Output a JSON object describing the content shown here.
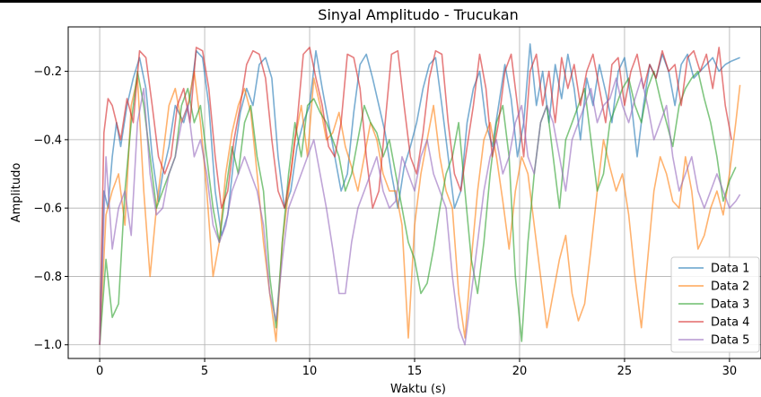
{
  "chart_data": {
    "type": "line",
    "title": "Sinyal Amplitudo - Trucukan",
    "xlabel": "Waktu (s)",
    "ylabel": "Amplitudo",
    "xlim": [
      -1.5,
      31.5
    ],
    "ylim": [
      -1.04,
      -0.07
    ],
    "xticks": [
      0,
      5,
      10,
      15,
      20,
      25,
      30
    ],
    "yticks": [
      -1.0,
      -0.8,
      -0.6,
      -0.4,
      -0.2
    ],
    "xtick_labels": [
      "0",
      "5",
      "10",
      "15",
      "20",
      "25",
      "30"
    ],
    "ytick_labels": [
      "−1.0",
      "−0.8",
      "−0.6",
      "−0.4",
      "−0.2"
    ],
    "grid": true,
    "legend_position": "lower-right",
    "series": [
      {
        "name": "Data 1",
        "color": "#1f77b4",
        "x": [
          0.0,
          0.2,
          0.4,
          0.6,
          0.8,
          1.0,
          1.3,
          1.6,
          1.9,
          2.2,
          2.5,
          2.8,
          3.0,
          3.3,
          3.6,
          4.0,
          4.3,
          4.6,
          4.9,
          5.2,
          5.5,
          5.8,
          6.1,
          6.4,
          6.7,
          7.0,
          7.3,
          7.6,
          7.9,
          8.2,
          8.5,
          8.8,
          9.1,
          9.4,
          9.7,
          10.0,
          10.3,
          10.6,
          10.9,
          11.2,
          11.5,
          11.8,
          12.1,
          12.4,
          12.7,
          13.0,
          13.3,
          13.6,
          13.9,
          14.2,
          14.5,
          14.8,
          15.1,
          15.4,
          15.7,
          16.0,
          16.3,
          16.6,
          16.9,
          17.2,
          17.5,
          17.8,
          18.1,
          18.4,
          18.7,
          19.0,
          19.3,
          19.6,
          19.9,
          20.2,
          20.5,
          20.8,
          21.1,
          21.4,
          21.7,
          22.0,
          22.3,
          22.6,
          22.9,
          23.2,
          23.5,
          23.8,
          24.1,
          24.4,
          24.7,
          25.0,
          25.3,
          25.6,
          25.9,
          26.2,
          26.5,
          26.8,
          27.1,
          27.4,
          27.7,
          28.0,
          28.3,
          28.6,
          28.9,
          29.2,
          29.5,
          29.8,
          30.1,
          30.5
        ],
        "values": [
          -1.0,
          -0.55,
          -0.6,
          -0.45,
          -0.35,
          -0.42,
          -0.3,
          -0.22,
          -0.16,
          -0.25,
          -0.45,
          -0.58,
          -0.5,
          -0.42,
          -0.3,
          -0.35,
          -0.28,
          -0.14,
          -0.16,
          -0.3,
          -0.55,
          -0.68,
          -0.62,
          -0.45,
          -0.32,
          -0.25,
          -0.3,
          -0.18,
          -0.16,
          -0.22,
          -0.45,
          -0.6,
          -0.55,
          -0.42,
          -0.35,
          -0.3,
          -0.14,
          -0.25,
          -0.35,
          -0.45,
          -0.55,
          -0.5,
          -0.32,
          -0.18,
          -0.15,
          -0.22,
          -0.3,
          -0.38,
          -0.5,
          -0.6,
          -0.48,
          -0.42,
          -0.35,
          -0.25,
          -0.18,
          -0.16,
          -0.3,
          -0.45,
          -0.6,
          -0.55,
          -0.35,
          -0.25,
          -0.2,
          -0.35,
          -0.42,
          -0.3,
          -0.18,
          -0.28,
          -0.45,
          -0.35,
          -0.12,
          -0.3,
          -0.2,
          -0.35,
          -0.18,
          -0.28,
          -0.15,
          -0.25,
          -0.4,
          -0.22,
          -0.3,
          -0.18,
          -0.26,
          -0.35,
          -0.2,
          -0.16,
          -0.28,
          -0.45,
          -0.3,
          -0.18,
          -0.22,
          -0.15,
          -0.2,
          -0.3,
          -0.18,
          -0.15,
          -0.22,
          -0.2,
          -0.18,
          -0.16,
          -0.2,
          -0.18,
          -0.17,
          -0.16
        ]
      },
      {
        "name": "Data 2",
        "color": "#ff7f0e",
        "x": [
          0.0,
          0.3,
          0.6,
          0.9,
          1.2,
          1.5,
          1.8,
          2.1,
          2.4,
          2.7,
          3.0,
          3.3,
          3.6,
          3.9,
          4.2,
          4.5,
          4.8,
          5.1,
          5.4,
          5.7,
          6.0,
          6.3,
          6.6,
          6.9,
          7.2,
          7.5,
          7.8,
          8.1,
          8.4,
          8.7,
          9.0,
          9.3,
          9.6,
          9.9,
          10.2,
          10.5,
          10.8,
          11.1,
          11.4,
          11.7,
          12.0,
          12.3,
          12.6,
          12.9,
          13.2,
          13.5,
          13.8,
          14.1,
          14.4,
          14.7,
          15.0,
          15.3,
          15.6,
          15.9,
          16.2,
          16.5,
          16.8,
          17.1,
          17.4,
          17.7,
          18.0,
          18.3,
          18.6,
          18.9,
          19.2,
          19.5,
          19.8,
          20.1,
          20.4,
          20.7,
          21.0,
          21.3,
          21.6,
          21.9,
          22.2,
          22.5,
          22.8,
          23.1,
          23.4,
          23.7,
          24.0,
          24.3,
          24.6,
          24.9,
          25.2,
          25.5,
          25.8,
          26.1,
          26.4,
          26.7,
          27.0,
          27.3,
          27.6,
          27.9,
          28.2,
          28.5,
          28.8,
          29.1,
          29.4,
          29.7,
          30.0,
          30.3,
          30.5
        ],
        "values": [
          -1.0,
          -0.62,
          -0.55,
          -0.5,
          -0.65,
          -0.3,
          -0.22,
          -0.55,
          -0.8,
          -0.6,
          -0.45,
          -0.3,
          -0.25,
          -0.35,
          -0.3,
          -0.2,
          -0.35,
          -0.55,
          -0.8,
          -0.7,
          -0.5,
          -0.38,
          -0.3,
          -0.25,
          -0.32,
          -0.5,
          -0.7,
          -0.85,
          -0.99,
          -0.7,
          -0.55,
          -0.4,
          -0.3,
          -0.45,
          -0.22,
          -0.3,
          -0.4,
          -0.38,
          -0.32,
          -0.42,
          -0.48,
          -0.55,
          -0.45,
          -0.35,
          -0.4,
          -0.5,
          -0.55,
          -0.55,
          -0.65,
          -0.98,
          -0.65,
          -0.5,
          -0.4,
          -0.3,
          -0.45,
          -0.55,
          -0.6,
          -0.85,
          -0.98,
          -0.75,
          -0.55,
          -0.4,
          -0.35,
          -0.45,
          -0.58,
          -0.72,
          -0.55,
          -0.45,
          -0.5,
          -0.65,
          -0.8,
          -0.95,
          -0.85,
          -0.75,
          -0.68,
          -0.85,
          -0.93,
          -0.88,
          -0.72,
          -0.55,
          -0.4,
          -0.48,
          -0.55,
          -0.5,
          -0.62,
          -0.8,
          -0.95,
          -0.75,
          -0.55,
          -0.45,
          -0.5,
          -0.58,
          -0.6,
          -0.45,
          -0.55,
          -0.72,
          -0.68,
          -0.6,
          -0.55,
          -0.62,
          -0.5,
          -0.35,
          -0.24
        ]
      },
      {
        "name": "Data 3",
        "color": "#2ca02c",
        "x": [
          0.0,
          0.3,
          0.6,
          0.9,
          1.2,
          1.5,
          1.8,
          2.1,
          2.4,
          2.7,
          3.0,
          3.3,
          3.6,
          3.9,
          4.2,
          4.5,
          4.8,
          5.1,
          5.4,
          5.7,
          6.0,
          6.3,
          6.6,
          6.9,
          7.2,
          7.5,
          7.8,
          8.1,
          8.4,
          8.7,
          9.0,
          9.3,
          9.6,
          9.9,
          10.2,
          10.5,
          10.8,
          11.1,
          11.4,
          11.7,
          12.0,
          12.3,
          12.6,
          12.9,
          13.2,
          13.5,
          13.8,
          14.1,
          14.4,
          14.7,
          15.0,
          15.3,
          15.6,
          15.9,
          16.2,
          16.5,
          16.8,
          17.1,
          17.4,
          17.7,
          18.0,
          18.3,
          18.6,
          18.9,
          19.2,
          19.5,
          19.8,
          20.1,
          20.4,
          20.7,
          21.0,
          21.3,
          21.6,
          21.9,
          22.2,
          22.5,
          22.8,
          23.1,
          23.4,
          23.7,
          24.0,
          24.3,
          24.6,
          24.9,
          25.2,
          25.5,
          25.8,
          26.1,
          26.4,
          26.7,
          27.0,
          27.3,
          27.6,
          27.9,
          28.2,
          28.5,
          28.8,
          29.1,
          29.4,
          29.7,
          30.0,
          30.3
        ],
        "values": [
          -1.0,
          -0.75,
          -0.92,
          -0.88,
          -0.55,
          -0.35,
          -0.2,
          -0.3,
          -0.45,
          -0.6,
          -0.55,
          -0.5,
          -0.45,
          -0.3,
          -0.25,
          -0.35,
          -0.3,
          -0.45,
          -0.6,
          -0.7,
          -0.55,
          -0.42,
          -0.5,
          -0.35,
          -0.3,
          -0.45,
          -0.55,
          -0.8,
          -0.95,
          -0.7,
          -0.5,
          -0.35,
          -0.45,
          -0.3,
          -0.28,
          -0.32,
          -0.35,
          -0.4,
          -0.45,
          -0.55,
          -0.5,
          -0.4,
          -0.3,
          -0.35,
          -0.38,
          -0.45,
          -0.4,
          -0.5,
          -0.6,
          -0.7,
          -0.75,
          -0.85,
          -0.82,
          -0.72,
          -0.6,
          -0.5,
          -0.45,
          -0.35,
          -0.55,
          -0.75,
          -0.85,
          -0.7,
          -0.5,
          -0.35,
          -0.3,
          -0.45,
          -0.8,
          -0.99,
          -0.7,
          -0.5,
          -0.35,
          -0.3,
          -0.45,
          -0.6,
          -0.4,
          -0.35,
          -0.3,
          -0.25,
          -0.4,
          -0.55,
          -0.5,
          -0.35,
          -0.3,
          -0.25,
          -0.22,
          -0.3,
          -0.35,
          -0.25,
          -0.2,
          -0.28,
          -0.35,
          -0.42,
          -0.3,
          -0.25,
          -0.22,
          -0.2,
          -0.28,
          -0.35,
          -0.45,
          -0.58,
          -0.52,
          -0.48
        ]
      },
      {
        "name": "Data 4",
        "color": "#d62728",
        "x": [
          0.0,
          0.2,
          0.4,
          0.6,
          0.8,
          1.0,
          1.3,
          1.6,
          1.9,
          2.2,
          2.5,
          2.8,
          3.1,
          3.4,
          3.7,
          4.0,
          4.3,
          4.6,
          4.9,
          5.2,
          5.5,
          5.8,
          6.1,
          6.4,
          6.7,
          7.0,
          7.3,
          7.6,
          7.9,
          8.2,
          8.5,
          8.8,
          9.1,
          9.4,
          9.7,
          10.0,
          10.3,
          10.6,
          10.9,
          11.2,
          11.5,
          11.8,
          12.1,
          12.4,
          12.7,
          13.0,
          13.3,
          13.6,
          13.9,
          14.2,
          14.5,
          14.8,
          15.1,
          15.4,
          15.7,
          16.0,
          16.3,
          16.6,
          16.9,
          17.2,
          17.5,
          17.8,
          18.1,
          18.4,
          18.7,
          19.0,
          19.3,
          19.6,
          19.9,
          20.2,
          20.5,
          20.8,
          21.1,
          21.4,
          21.7,
          22.0,
          22.3,
          22.6,
          22.9,
          23.2,
          23.5,
          23.8,
          24.1,
          24.4,
          24.7,
          25.0,
          25.3,
          25.6,
          25.9,
          26.2,
          26.5,
          26.8,
          27.1,
          27.4,
          27.7,
          28.0,
          28.3,
          28.6,
          28.9,
          29.2,
          29.5,
          29.8,
          30.1
        ],
        "values": [
          -1.0,
          -0.38,
          -0.28,
          -0.3,
          -0.35,
          -0.4,
          -0.28,
          -0.35,
          -0.14,
          -0.16,
          -0.3,
          -0.45,
          -0.5,
          -0.45,
          -0.3,
          -0.25,
          -0.35,
          -0.13,
          -0.14,
          -0.25,
          -0.45,
          -0.6,
          -0.55,
          -0.4,
          -0.3,
          -0.18,
          -0.14,
          -0.15,
          -0.22,
          -0.4,
          -0.55,
          -0.6,
          -0.5,
          -0.35,
          -0.15,
          -0.13,
          -0.22,
          -0.3,
          -0.42,
          -0.45,
          -0.35,
          -0.15,
          -0.16,
          -0.25,
          -0.45,
          -0.6,
          -0.55,
          -0.35,
          -0.15,
          -0.14,
          -0.3,
          -0.45,
          -0.5,
          -0.38,
          -0.22,
          -0.14,
          -0.15,
          -0.35,
          -0.5,
          -0.55,
          -0.42,
          -0.3,
          -0.15,
          -0.25,
          -0.45,
          -0.35,
          -0.2,
          -0.15,
          -0.3,
          -0.45,
          -0.2,
          -0.15,
          -0.3,
          -0.2,
          -0.35,
          -0.16,
          -0.25,
          -0.18,
          -0.3,
          -0.2,
          -0.15,
          -0.25,
          -0.35,
          -0.18,
          -0.16,
          -0.3,
          -0.2,
          -0.15,
          -0.25,
          -0.18,
          -0.22,
          -0.14,
          -0.2,
          -0.18,
          -0.3,
          -0.16,
          -0.14,
          -0.2,
          -0.15,
          -0.25,
          -0.13,
          -0.3,
          -0.4
        ]
      },
      {
        "name": "Data 5",
        "color": "#9467bd",
        "x": [
          0.0,
          0.3,
          0.6,
          0.9,
          1.2,
          1.5,
          1.8,
          2.1,
          2.4,
          2.7,
          3.0,
          3.3,
          3.6,
          3.9,
          4.2,
          4.5,
          4.8,
          5.1,
          5.4,
          5.7,
          6.0,
          6.3,
          6.6,
          6.9,
          7.2,
          7.5,
          7.8,
          8.1,
          8.4,
          8.7,
          9.0,
          9.3,
          9.6,
          9.9,
          10.2,
          10.5,
          10.8,
          11.1,
          11.4,
          11.7,
          12.0,
          12.3,
          12.6,
          12.9,
          13.2,
          13.5,
          13.8,
          14.1,
          14.4,
          14.7,
          15.0,
          15.3,
          15.6,
          15.9,
          16.2,
          16.5,
          16.8,
          17.1,
          17.4,
          17.7,
          18.0,
          18.3,
          18.6,
          18.9,
          19.2,
          19.5,
          19.8,
          20.1,
          20.4,
          20.7,
          21.0,
          21.3,
          21.6,
          21.9,
          22.2,
          22.5,
          22.8,
          23.1,
          23.4,
          23.7,
          24.0,
          24.3,
          24.6,
          24.9,
          25.2,
          25.5,
          25.8,
          26.1,
          26.4,
          26.7,
          27.0,
          27.3,
          27.6,
          27.9,
          28.2,
          28.5,
          28.8,
          29.1,
          29.4,
          29.7,
          30.0,
          30.3,
          30.5
        ],
        "values": [
          -1.0,
          -0.45,
          -0.72,
          -0.6,
          -0.55,
          -0.68,
          -0.35,
          -0.25,
          -0.5,
          -0.62,
          -0.6,
          -0.5,
          -0.45,
          -0.35,
          -0.3,
          -0.45,
          -0.4,
          -0.5,
          -0.65,
          -0.7,
          -0.65,
          -0.55,
          -0.5,
          -0.45,
          -0.5,
          -0.55,
          -0.65,
          -0.85,
          -0.93,
          -0.75,
          -0.6,
          -0.55,
          -0.5,
          -0.45,
          -0.4,
          -0.5,
          -0.6,
          -0.72,
          -0.85,
          -0.85,
          -0.7,
          -0.6,
          -0.55,
          -0.5,
          -0.45,
          -0.55,
          -0.6,
          -0.58,
          -0.45,
          -0.5,
          -0.55,
          -0.45,
          -0.4,
          -0.5,
          -0.55,
          -0.6,
          -0.8,
          -0.95,
          -1.0,
          -0.85,
          -0.7,
          -0.55,
          -0.45,
          -0.4,
          -0.5,
          -0.45,
          -0.35,
          -0.3,
          -0.45,
          -0.5,
          -0.35,
          -0.3,
          -0.35,
          -0.45,
          -0.55,
          -0.4,
          -0.35,
          -0.3,
          -0.25,
          -0.35,
          -0.3,
          -0.28,
          -0.22,
          -0.3,
          -0.35,
          -0.28,
          -0.22,
          -0.3,
          -0.4,
          -0.35,
          -0.3,
          -0.45,
          -0.55,
          -0.5,
          -0.45,
          -0.55,
          -0.6,
          -0.55,
          -0.5,
          -0.55,
          -0.6,
          -0.58,
          -0.56
        ]
      }
    ]
  }
}
